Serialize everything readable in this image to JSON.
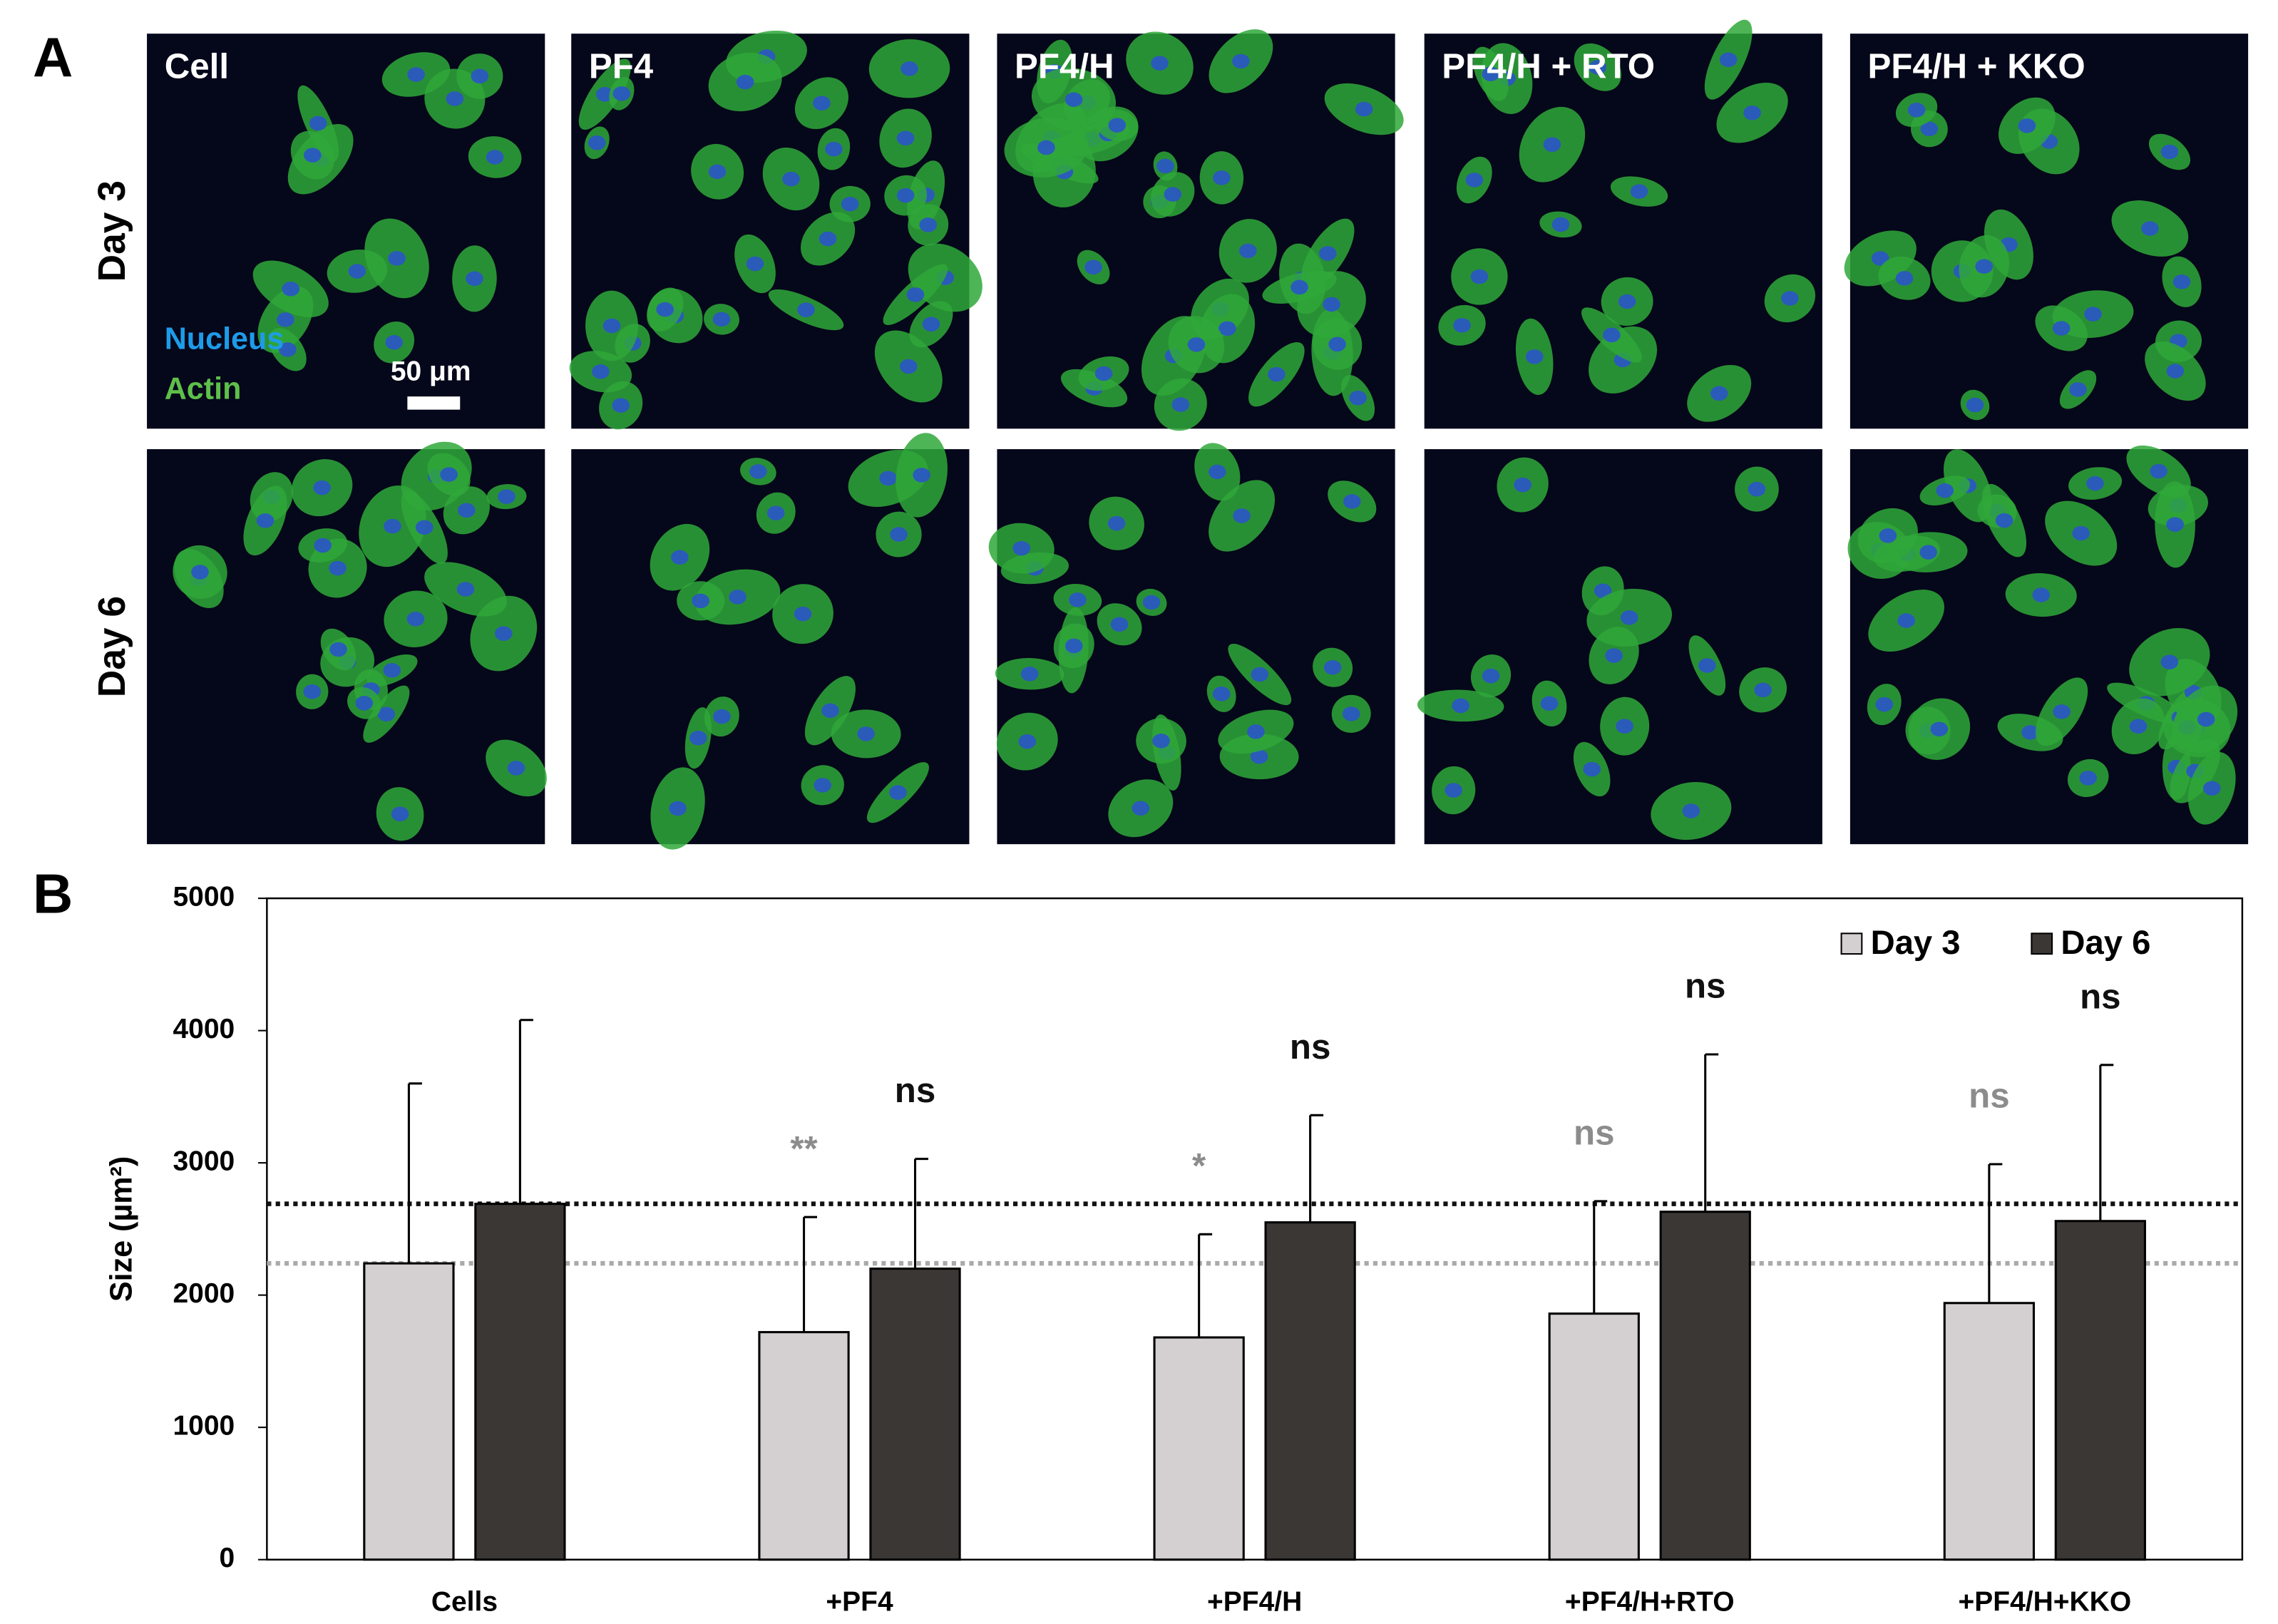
{
  "panel_a": {
    "label": "A",
    "columns": [
      "Cell",
      "PF4",
      "PF4/H",
      "PF4/H + RTO",
      "PF4/H + KKO"
    ],
    "rows": [
      "Day 3",
      "Day 6"
    ],
    "stain_nucleus": "Nucleus",
    "stain_actin": "Actin",
    "scale_bar": "50 μm"
  },
  "chart_data": {
    "type": "bar",
    "panel_label": "B",
    "y_label": "Size (µm²)",
    "categories": [
      "Cells",
      "+PF4",
      "+PF4/H",
      "+PF4/H+RTO",
      "+PF4/H+KKO"
    ],
    "series": [
      {
        "name": "Day 3",
        "color": "#d4d0d1",
        "values": [
          2240,
          1720,
          1680,
          1860,
          1940
        ],
        "errors": [
          1360,
          870,
          780,
          850,
          1050
        ],
        "annotations": [
          null,
          "**",
          "*",
          "ns",
          "ns"
        ],
        "annotation_color": "#8c8c8c",
        "reference_line_color": "#aaaaaa"
      },
      {
        "name": "Day 6",
        "color": "#3b3735",
        "values": [
          2690,
          2200,
          2550,
          2630,
          2560
        ],
        "errors": [
          1390,
          830,
          810,
          1190,
          1180
        ],
        "annotations": [
          null,
          "ns",
          "ns",
          "ns",
          "ns"
        ],
        "annotation_color": "#111111",
        "reference_line_color": "#111111"
      }
    ],
    "ylim": [
      0,
      5000
    ],
    "yticks": [
      0,
      1000,
      2000,
      3000,
      4000,
      5000
    ],
    "legend": "top-right"
  }
}
